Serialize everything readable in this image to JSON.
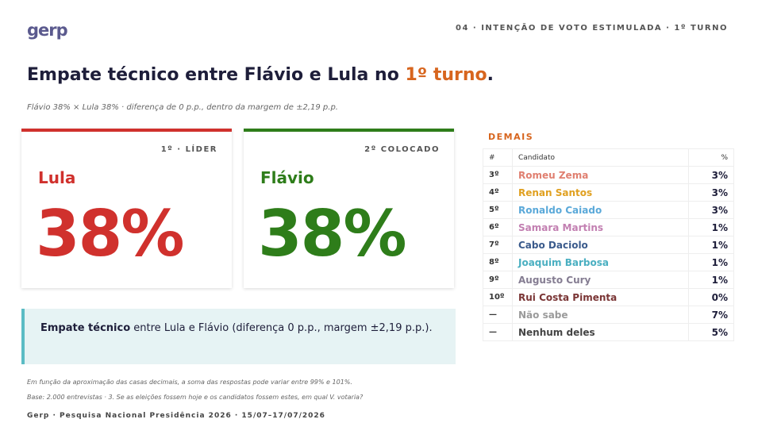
{
  "header": {
    "logo": "gerp",
    "section": "04 · INTENÇÃO DE VOTO ESTIMULADA · 1º TURNO"
  },
  "title": {
    "text": "Empate técnico entre Flávio e Lula no ",
    "highlight": "1º turno",
    "end": "."
  },
  "subtitle": "Flávio 38% × Lula 38% · diferença de 0 p.p., dentro da margem de ±2,19 p.p.",
  "cards": [
    {
      "rank": "1º · LÍDER",
      "name": "Lula",
      "value": "38%",
      "color": "#d0312d"
    },
    {
      "rank": "2º COLOCADO",
      "name": "Flávio",
      "value": "38%",
      "color": "#2e7d1a"
    }
  ],
  "callout": {
    "bold": "Empate técnico",
    "text": " entre Lula e Flávio (diferença 0 p.p., margem ±2,19 p.p.)."
  },
  "notes": [
    "Em função da aproximação das casas decimais, a soma das respostas pode variar entre 99% e 101%.",
    "Base: 2.000 entrevistas · 3. Se as eleições fossem hoje e os candidatos fossem estes, em qual V. votaria?"
  ],
  "footer": "Gerp · Pesquisa Nacional Presidência 2026 · 15/07–17/07/2026",
  "others": {
    "title": "DEMAIS",
    "headers": [
      "#",
      "Candidato",
      "%"
    ],
    "rows": [
      {
        "rank": "3º",
        "name": "Romeu Zema",
        "value": "3%",
        "color": "#e07f70"
      },
      {
        "rank": "4º",
        "name": "Renan Santos",
        "value": "3%",
        "color": "#e0a020"
      },
      {
        "rank": "5º",
        "name": "Ronaldo Caiado",
        "value": "3%",
        "color": "#5ba9d9"
      },
      {
        "rank": "6º",
        "name": "Samara Martins",
        "value": "1%",
        "color": "#c27fb1"
      },
      {
        "rank": "7º",
        "name": "Cabo Daciolo",
        "value": "1%",
        "color": "#3b5b8c"
      },
      {
        "rank": "8º",
        "name": "Joaquim Barbosa",
        "value": "1%",
        "color": "#4aafc1"
      },
      {
        "rank": "9º",
        "name": "Augusto Cury",
        "value": "1%",
        "color": "#857d92"
      },
      {
        "rank": "10º",
        "name": "Rui Costa Pimenta",
        "value": "0%",
        "color": "#7a3535"
      },
      {
        "rank": "—",
        "name": "Não sabe",
        "value": "7%",
        "color": "#9a9a9a"
      },
      {
        "rank": "—",
        "name": "Nenhum deles",
        "value": "5%",
        "color": "#444444"
      }
    ]
  }
}
